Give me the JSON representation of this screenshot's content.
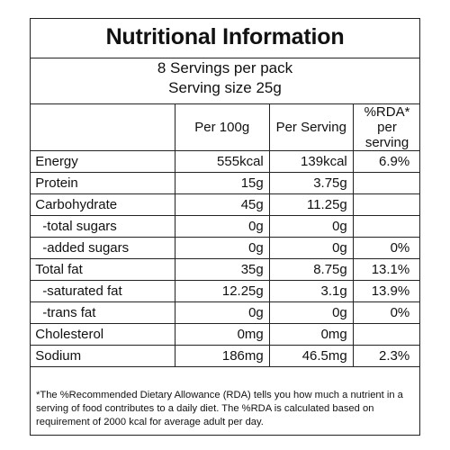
{
  "title": "Nutritional Information",
  "servings_per_pack": "8 Servings per pack",
  "serving_size": "Serving size 25g",
  "columns": [
    "",
    "Per 100g",
    "Per Serving",
    "%RDA*\nper serving"
  ],
  "column_rda_line1": "%RDA*",
  "column_rda_line2": "per serving",
  "rows": [
    {
      "name": "Energy",
      "per100": "555kcal",
      "perServing": "139kcal",
      "rda": "6.9%",
      "sub": false
    },
    {
      "name": "Protein",
      "per100": "15g",
      "perServing": "3.75g",
      "rda": "",
      "sub": false
    },
    {
      "name": "Carbohydrate",
      "per100": "45g",
      "perServing": "11.25g",
      "rda": "",
      "sub": false
    },
    {
      "name": "-total sugars",
      "per100": "0g",
      "perServing": "0g",
      "rda": "",
      "sub": true
    },
    {
      "name": "-added sugars",
      "per100": "0g",
      "perServing": "0g",
      "rda": "0%",
      "sub": true
    },
    {
      "name": "Total  fat",
      "per100": "35g",
      "perServing": "8.75g",
      "rda": "13.1%",
      "sub": false
    },
    {
      "name": "-saturated fat",
      "per100": "12.25g",
      "perServing": "3.1g",
      "rda": "13.9%",
      "sub": true
    },
    {
      "name": "-trans fat",
      "per100": "0g",
      "perServing": "0g",
      "rda": "0%",
      "sub": true
    },
    {
      "name": "Cholesterol",
      "per100": "0mg",
      "perServing": "0mg",
      "rda": "",
      "sub": false
    },
    {
      "name": "Sodium",
      "per100": "186mg",
      "perServing": "46.5mg",
      "rda": "2.3%",
      "sub": false
    }
  ],
  "footnote": "*The %Recommended Dietary Allowance (RDA) tells you how much a nutrient in a serving of food contributes to a daily diet. The %RDA is calculated based on requirement of 2000 kcal for average adult per day."
}
